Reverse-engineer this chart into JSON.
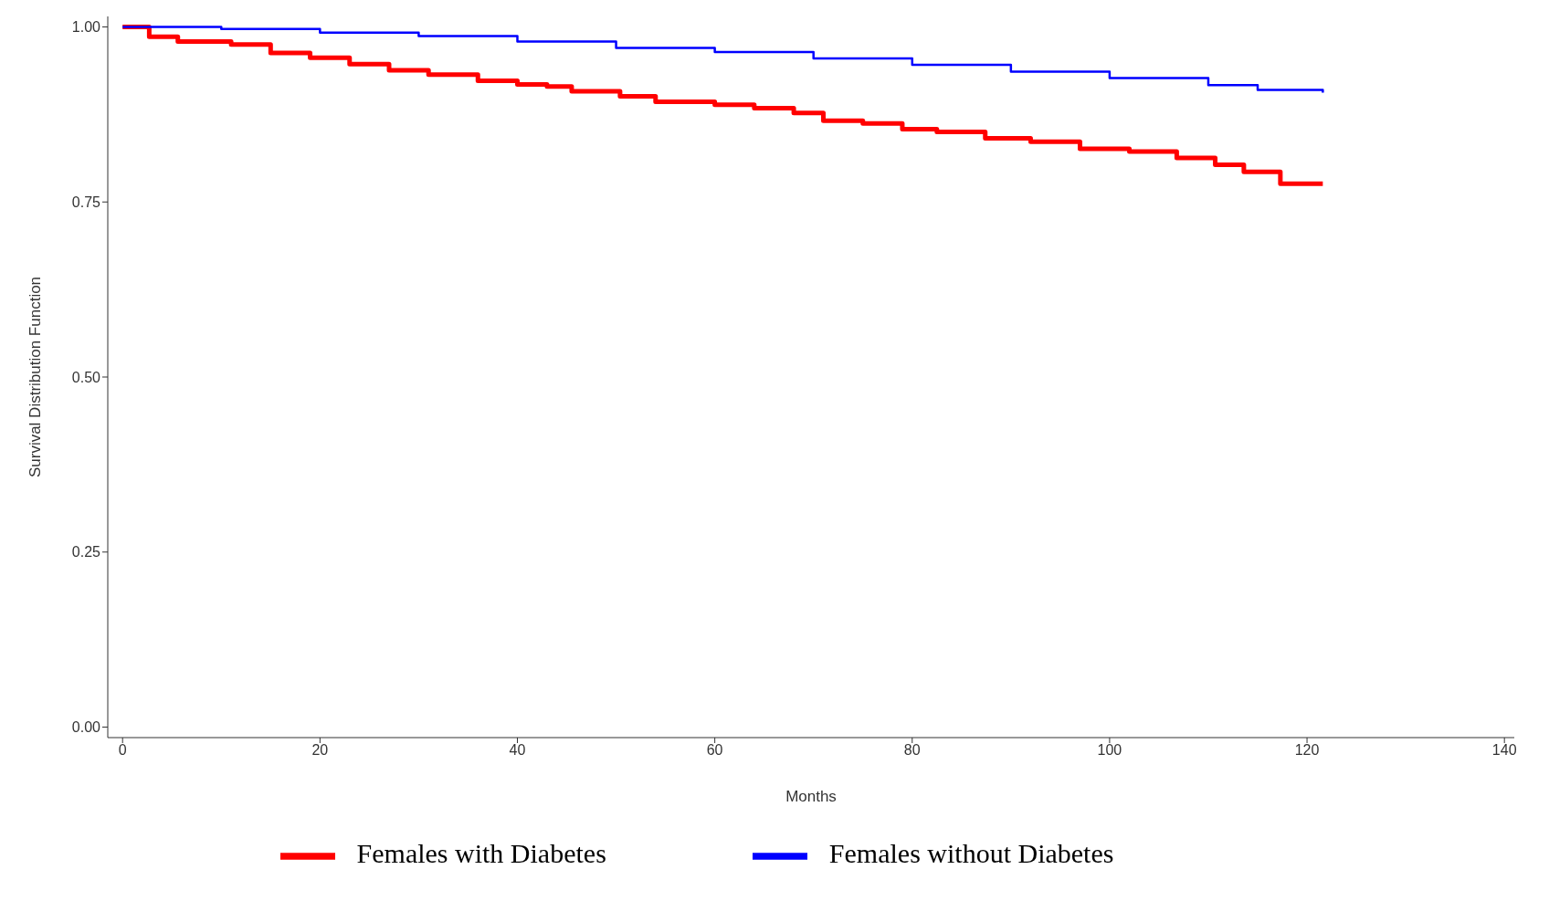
{
  "chart_data": {
    "type": "step",
    "xlabel": "Months",
    "ylabel": "Survival Distribution Function",
    "xlim": [
      -1.5,
      141
    ],
    "xticks": [
      0,
      20,
      40,
      60,
      80,
      100,
      120,
      140
    ],
    "ylim": [
      -0.015,
      1.015
    ],
    "yticks": [
      {
        "value": 0,
        "label": "0.00"
      },
      {
        "value": 0.25,
        "label": "0.25"
      },
      {
        "value": 0.5,
        "label": "0.50"
      },
      {
        "value": 0.75,
        "label": "0.75"
      },
      {
        "value": 1,
        "label": "1.00"
      }
    ],
    "grid": false,
    "legend": "bottom",
    "line_style": "solid",
    "marker": "none",
    "series": [
      {
        "name": "Females with Diabetes",
        "color": "#ff0000",
        "x": [
          0,
          2.7,
          5.6,
          11,
          15,
          19,
          23,
          27,
          31,
          36,
          40,
          43,
          45.5,
          50.4,
          54,
          60,
          64,
          68,
          71,
          75,
          79,
          82.5,
          87.4,
          92,
          97,
          102,
          106.8,
          110.7,
          113.6,
          117.3,
          121.6
        ],
        "values": [
          1,
          0.986,
          0.979,
          0.975,
          0.963,
          0.956,
          0.947,
          0.938,
          0.932,
          0.923,
          0.918,
          0.915,
          0.908,
          0.901,
          0.893,
          0.889,
          0.884,
          0.877,
          0.866,
          0.862,
          0.854,
          0.85,
          0.841,
          0.836,
          0.826,
          0.822,
          0.813,
          0.803,
          0.793,
          0.776,
          0.776
        ]
      },
      {
        "name": "Females without Diabetes",
        "color": "#0000ff",
        "x": [
          0,
          10,
          20,
          30,
          40,
          50,
          60,
          70,
          80,
          90,
          100,
          110,
          115,
          121.6
        ],
        "values": [
          1,
          0.997,
          0.992,
          0.987,
          0.979,
          0.97,
          0.964,
          0.955,
          0.946,
          0.936,
          0.927,
          0.917,
          0.91,
          0.906
        ]
      }
    ]
  }
}
